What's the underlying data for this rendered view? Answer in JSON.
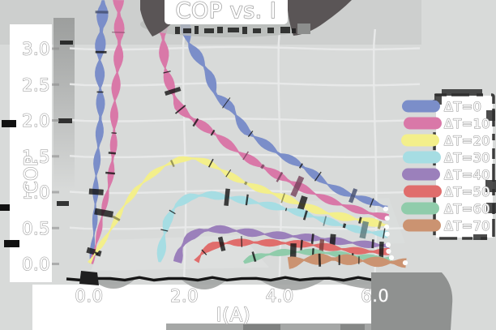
{
  "title": "COP vs. I",
  "axes": {
    "x": {
      "label": "I(A)",
      "tick_labels": [
        "0.0",
        "2.0",
        "4.0",
        "6.0"
      ],
      "tick_values": [
        0,
        2,
        4,
        6
      ]
    },
    "y": {
      "label": "COP",
      "tick_labels": [
        "0.0",
        "0.5",
        "1.0",
        "1.5",
        "2.0",
        "2.5",
        "3.0"
      ],
      "tick_values": [
        0,
        0.5,
        1,
        1.5,
        2,
        2.5,
        3
      ]
    }
  },
  "legend": {
    "items": [
      {
        "label": "ΔT=0",
        "color": "#7b8ec9"
      },
      {
        "label": "ΔT=10",
        "color": "#d978a8"
      },
      {
        "label": "ΔT=20",
        "color": "#f3ef8b"
      },
      {
        "label": "ΔT=30",
        "color": "#a6dde3"
      },
      {
        "label": "ΔT=40",
        "color": "#9b80bb"
      },
      {
        "label": "ΔT=50",
        "color": "#e06d6c"
      },
      {
        "label": "ΔT=60",
        "color": "#90ccab"
      },
      {
        "label": "ΔT=70",
        "color": "#cb9371"
      }
    ]
  },
  "chart_data": {
    "type": "line",
    "title": "COP vs. I",
    "xlabel": "I(A)",
    "ylabel": "COP",
    "xlim": [
      0,
      6.8
    ],
    "ylim": [
      0,
      3.3
    ],
    "grid": true,
    "legend_position": "right",
    "series": [
      {
        "name": "ΔT=0",
        "color": "#7b8ec9",
        "widths": [
          [
            5,
            15
          ],
          [
            13,
            9
          ]
        ],
        "segments": [
          [
            [
              0.02,
              0
            ],
            [
              0.1,
              0.55
            ],
            [
              0.16,
              1.1
            ],
            [
              0.2,
              1.75
            ],
            [
              0.23,
              2.4
            ],
            [
              0.25,
              3.0
            ],
            [
              0.27,
              3.67
            ]
          ],
          [
            [
              2.03,
              3.35
            ],
            [
              2.1,
              3.05
            ],
            [
              2.3,
              2.85
            ],
            [
              2.5,
              2.62
            ],
            [
              2.65,
              2.35
            ],
            [
              3.0,
              2.18
            ],
            [
              3.3,
              1.85
            ],
            [
              3.6,
              1.7
            ],
            [
              4.0,
              1.5
            ],
            [
              4.35,
              1.4
            ],
            [
              4.7,
              1.26
            ],
            [
              5.05,
              1.1
            ],
            [
              5.4,
              0.98
            ],
            [
              5.8,
              0.88
            ],
            [
              6.1,
              0.8
            ],
            [
              6.24,
              0.76
            ]
          ]
        ]
      },
      {
        "name": "ΔT=10",
        "color": "#d978a8",
        "widths": [
          [
            5,
            14
          ],
          [
            13,
            9
          ]
        ],
        "segments": [
          [
            [
              0.03,
              0
            ],
            [
              0.25,
              0.5
            ],
            [
              0.42,
              1.1
            ],
            [
              0.52,
              1.8
            ],
            [
              0.58,
              2.5
            ],
            [
              0.61,
              3.1
            ],
            [
              0.63,
              3.67
            ]
          ],
          [
            [
              1.5,
              3.67
            ],
            [
              1.55,
              3.15
            ],
            [
              1.62,
              2.7
            ],
            [
              1.73,
              2.45
            ],
            [
              1.85,
              2.2
            ],
            [
              2.0,
              2.08
            ],
            [
              2.2,
              1.98
            ],
            [
              2.4,
              1.9
            ],
            [
              2.65,
              1.8
            ],
            [
              2.95,
              1.66
            ],
            [
              3.2,
              1.54
            ],
            [
              3.55,
              1.39
            ],
            [
              3.9,
              1.24
            ],
            [
              4.25,
              1.11
            ],
            [
              4.65,
              0.99
            ],
            [
              5.05,
              0.89
            ],
            [
              5.45,
              0.8
            ],
            [
              5.85,
              0.71
            ],
            [
              6.1,
              0.66
            ],
            [
              6.27,
              0.63
            ]
          ]
        ]
      },
      {
        "name": "ΔT=20",
        "color": "#f3ef8b",
        "widths": [
          [
            6,
            11
          ]
        ],
        "segments": [
          [
            [
              0.02,
              0
            ],
            [
              0.35,
              0.35
            ],
            [
              0.7,
              0.8
            ],
            [
              1.0,
              1.05
            ],
            [
              1.3,
              1.22
            ],
            [
              1.6,
              1.35
            ],
            [
              1.9,
              1.44
            ],
            [
              2.2,
              1.47
            ],
            [
              2.5,
              1.42
            ],
            [
              2.8,
              1.31
            ],
            [
              3.1,
              1.18
            ],
            [
              3.5,
              1.05
            ],
            [
              3.9,
              0.95
            ],
            [
              4.3,
              0.86
            ],
            [
              4.75,
              0.76
            ],
            [
              5.2,
              0.68
            ],
            [
              5.7,
              0.6
            ],
            [
              6.26,
              0.51
            ]
          ]
        ]
      },
      {
        "name": "ΔT=30",
        "color": "#a6dde3",
        "widths": [
          [
            11,
            9
          ]
        ],
        "segments": [
          [
            [
              1.47,
              0.02
            ],
            [
              1.52,
              0.3
            ],
            [
              1.62,
              0.58
            ],
            [
              1.82,
              0.8
            ],
            [
              2.1,
              0.91
            ],
            [
              2.5,
              0.95
            ],
            [
              2.95,
              0.92
            ],
            [
              3.4,
              0.88
            ],
            [
              3.9,
              0.8
            ],
            [
              4.4,
              0.7
            ],
            [
              4.9,
              0.6
            ],
            [
              5.4,
              0.52
            ],
            [
              5.9,
              0.45
            ],
            [
              6.27,
              0.41
            ]
          ]
        ]
      },
      {
        "name": "ΔT=40",
        "color": "#9b80bb",
        "widths": [
          [
            11,
            9
          ]
        ],
        "segments": [
          [
            [
              1.84,
              0.02
            ],
            [
              1.92,
              0.2
            ],
            [
              2.08,
              0.35
            ],
            [
              2.35,
              0.44
            ],
            [
              2.7,
              0.47
            ],
            [
              3.1,
              0.46
            ],
            [
              3.6,
              0.43
            ],
            [
              4.1,
              0.39
            ],
            [
              4.6,
              0.35
            ],
            [
              5.1,
              0.31
            ],
            [
              5.6,
              0.29
            ],
            [
              6.29,
              0.26
            ]
          ]
        ]
      },
      {
        "name": "ΔT=50",
        "color": "#e06d6c",
        "widths": [
          [
            10,
            9
          ]
        ],
        "segments": [
          [
            [
              2.27,
              0.02
            ],
            [
              2.38,
              0.14
            ],
            [
              2.58,
              0.24
            ],
            [
              2.95,
              0.3
            ],
            [
              3.4,
              0.31
            ],
            [
              3.9,
              0.29
            ],
            [
              4.4,
              0.26
            ],
            [
              4.9,
              0.23
            ],
            [
              5.4,
              0.2
            ],
            [
              5.9,
              0.18
            ],
            [
              6.3,
              0.17
            ]
          ]
        ]
      },
      {
        "name": "ΔT=60",
        "color": "#90ccab",
        "widths": [
          [
            9,
            8
          ]
        ],
        "segments": [
          [
            [
              3.24,
              0.02
            ],
            [
              3.38,
              0.08
            ],
            [
              3.65,
              0.13
            ],
            [
              4.05,
              0.16
            ],
            [
              4.55,
              0.15
            ],
            [
              5.05,
              0.13
            ],
            [
              5.55,
              0.11
            ],
            [
              6.05,
              0.09
            ],
            [
              6.36,
              0.08
            ]
          ]
        ]
      },
      {
        "name": "ΔT=70",
        "color": "#cb9371",
        "widths": [
          [
            15,
            12
          ]
        ],
        "segments": [
          [
            [
              4.18,
              0.01
            ],
            [
              4.5,
              0.04
            ],
            [
              4.95,
              0.05
            ],
            [
              5.45,
              0.05
            ],
            [
              5.95,
              0.04
            ],
            [
              6.35,
              0.03
            ],
            [
              6.65,
              0.01
            ]
          ]
        ]
      }
    ]
  },
  "style": {
    "background": "#d8dad9",
    "title_band": "#cdcfce",
    "dark_blob": "#5a5556",
    "text_fill": "#ffffff",
    "text_stroke": "#a5a5a5",
    "spine": "#161616",
    "grid": "#e9eaea",
    "shadow_gray": "#a2a4a3",
    "corner_blob": "#8f9190",
    "legend_bg": "#ffffff",
    "legend_border": "#3c3c3c",
    "label_bg": "#ffffff"
  }
}
